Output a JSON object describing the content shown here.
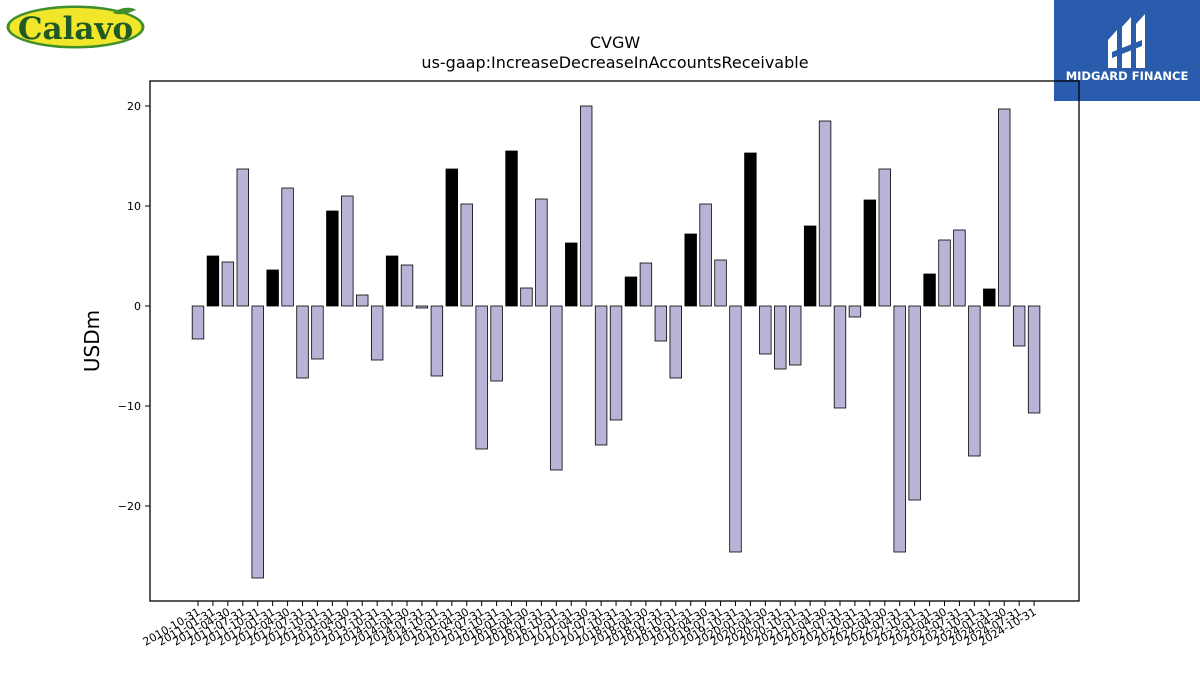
{
  "logos": {
    "left": {
      "text": "Calavo",
      "icon": "calavo-logo-icon",
      "colors": {
        "fill": "#f2e62a",
        "border": "#3f8e2c",
        "text": "#1d5a24"
      }
    },
    "right": {
      "text": "MIDGARD FINANCE",
      "icon": "midgard-finance-logo-icon",
      "colors": {
        "bg": "#2a5cad",
        "text": "#ffffff"
      }
    }
  },
  "chart_data": {
    "type": "bar",
    "title": "CVGW",
    "subtitle": "us-gaap:IncreaseDecreaseInAccountsReceivable",
    "xlabel": "",
    "ylabel": "USDm",
    "ylim": [
      -29.5,
      22.5
    ],
    "yticks": [
      -20,
      -10,
      0,
      10,
      20
    ],
    "ytick_labels": [
      "−20",
      "−10",
      "0",
      "10",
      "20"
    ],
    "grid": false,
    "legend": "none",
    "colors": {
      "highlight": "#000000",
      "normal": "#b8b4d6",
      "edge": "#000000"
    },
    "categories": [
      "2010-10-31",
      "2011-01-31",
      "2011-04-30",
      "2011-07-31",
      "2011-10-31",
      "2012-01-31",
      "2012-04-30",
      "2012-07-31",
      "2012-10-31",
      "2013-01-31",
      "2013-04-30",
      "2013-07-31",
      "2013-10-31",
      "2014-01-31",
      "2014-04-30",
      "2014-07-31",
      "2014-10-31",
      "2015-01-31",
      "2015-04-30",
      "2015-07-31",
      "2015-10-31",
      "2016-01-31",
      "2016-04-30",
      "2016-07-31",
      "2016-10-31",
      "2017-01-31",
      "2017-04-30",
      "2017-07-31",
      "2017-10-31",
      "2018-01-31",
      "2018-04-30",
      "2018-07-31",
      "2018-10-31",
      "2019-01-31",
      "2019-04-30",
      "2019-07-31",
      "2019-10-31",
      "2020-01-31",
      "2020-04-30",
      "2020-07-31",
      "2020-10-31",
      "2021-01-31",
      "2021-04-30",
      "2021-07-31",
      "2021-10-31",
      "2022-01-31",
      "2022-04-30",
      "2022-07-31",
      "2022-10-31",
      "2023-01-31",
      "2023-04-30",
      "2023-07-31",
      "2023-10-31",
      "2024-01-31",
      "2024-04-30",
      "2024-07-31",
      "2024-10-31"
    ],
    "values": [
      -3.3,
      5.0,
      4.4,
      13.7,
      -27.2,
      3.6,
      11.8,
      -7.2,
      -5.3,
      9.5,
      11.0,
      1.1,
      -5.4,
      5.0,
      4.1,
      -0.2,
      -7.0,
      13.7,
      10.2,
      -14.3,
      -7.5,
      15.5,
      1.8,
      10.7,
      -16.4,
      6.3,
      20.0,
      -13.9,
      -11.4,
      2.9,
      4.3,
      -3.5,
      -7.2,
      7.2,
      10.2,
      4.6,
      -24.6,
      15.3,
      -4.8,
      -6.3,
      -5.9,
      8.0,
      18.5,
      -10.2,
      -1.1,
      10.6,
      13.7,
      -24.6,
      -19.4,
      3.2,
      6.6,
      7.6,
      -15.0,
      1.7,
      19.7,
      -4.0,
      -10.7
    ],
    "highlight": [
      false,
      true,
      false,
      false,
      false,
      true,
      false,
      false,
      false,
      true,
      false,
      false,
      false,
      true,
      false,
      false,
      false,
      true,
      false,
      false,
      false,
      true,
      false,
      false,
      false,
      true,
      false,
      false,
      false,
      true,
      false,
      false,
      false,
      true,
      false,
      false,
      false,
      true,
      false,
      false,
      false,
      true,
      false,
      false,
      false,
      true,
      false,
      false,
      false,
      true,
      false,
      false,
      false,
      true,
      false,
      false,
      false
    ]
  }
}
